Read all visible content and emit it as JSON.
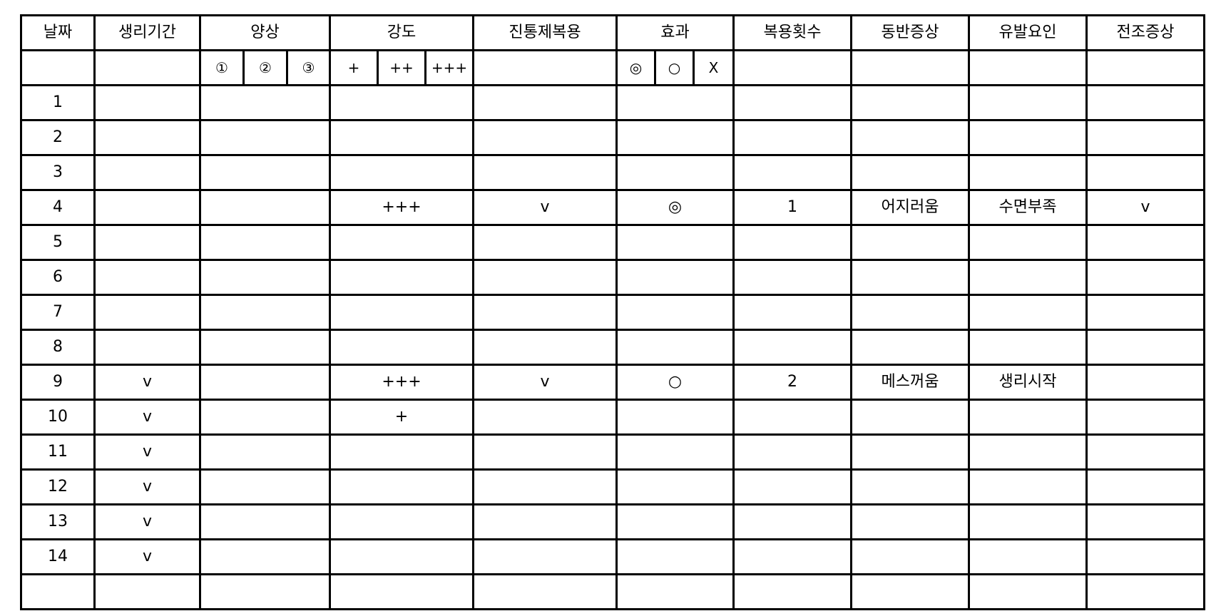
{
  "headers": [
    "날짜",
    "생리기간",
    "양상",
    "강도",
    "진통제복용",
    "효과",
    "복용횟수",
    "동반증상",
    "유발요인",
    "전조증상"
  ],
  "subheaders": {
    "pattern": [
      "①",
      "②",
      "③"
    ],
    "intensity": [
      "+",
      "++",
      "+++"
    ],
    "effect": [
      "◎",
      "○",
      "X"
    ]
  },
  "rows": [
    {
      "day": "1",
      "period": "",
      "pattern": "",
      "intensity": "",
      "painkiller": "",
      "effect": "",
      "doses": "",
      "symptoms": "",
      "triggers": "",
      "aura": ""
    },
    {
      "day": "2",
      "period": "",
      "pattern": "",
      "intensity": "",
      "painkiller": "",
      "effect": "",
      "doses": "",
      "symptoms": "",
      "triggers": "",
      "aura": ""
    },
    {
      "day": "3",
      "period": "",
      "pattern": "",
      "intensity": "",
      "painkiller": "",
      "effect": "",
      "doses": "",
      "symptoms": "",
      "triggers": "",
      "aura": ""
    },
    {
      "day": "4",
      "period": "",
      "pattern": "",
      "intensity": "+++",
      "painkiller": "v",
      "effect": "◎",
      "doses": "1",
      "symptoms": "어지러움",
      "triggers": "수면부족",
      "aura": "v"
    },
    {
      "day": "5",
      "period": "",
      "pattern": "",
      "intensity": "",
      "painkiller": "",
      "effect": "",
      "doses": "",
      "symptoms": "",
      "triggers": "",
      "aura": ""
    },
    {
      "day": "6",
      "period": "",
      "pattern": "",
      "intensity": "",
      "painkiller": "",
      "effect": "",
      "doses": "",
      "symptoms": "",
      "triggers": "",
      "aura": ""
    },
    {
      "day": "7",
      "period": "",
      "pattern": "",
      "intensity": "",
      "painkiller": "",
      "effect": "",
      "doses": "",
      "symptoms": "",
      "triggers": "",
      "aura": ""
    },
    {
      "day": "8",
      "period": "",
      "pattern": "",
      "intensity": "",
      "painkiller": "",
      "effect": "",
      "doses": "",
      "symptoms": "",
      "triggers": "",
      "aura": ""
    },
    {
      "day": "9",
      "period": "v",
      "pattern": "",
      "intensity": "+++",
      "painkiller": "v",
      "effect": "○",
      "doses": "2",
      "symptoms": "메스꺼움",
      "triggers": "생리시작",
      "aura": ""
    },
    {
      "day": "10",
      "period": "v",
      "pattern": "",
      "intensity": "+",
      "painkiller": "",
      "effect": "",
      "doses": "",
      "symptoms": "",
      "triggers": "",
      "aura": ""
    },
    {
      "day": "11",
      "period": "v",
      "pattern": "",
      "intensity": "",
      "painkiller": "",
      "effect": "",
      "doses": "",
      "symptoms": "",
      "triggers": "",
      "aura": ""
    },
    {
      "day": "12",
      "period": "v",
      "pattern": "",
      "intensity": "",
      "painkiller": "",
      "effect": "",
      "doses": "",
      "symptoms": "",
      "triggers": "",
      "aura": ""
    },
    {
      "day": "13",
      "period": "v",
      "pattern": "",
      "intensity": "",
      "painkiller": "",
      "effect": "",
      "doses": "",
      "symptoms": "",
      "triggers": "",
      "aura": ""
    },
    {
      "day": "14",
      "period": "v",
      "pattern": "",
      "intensity": "",
      "painkiller": "",
      "effect": "",
      "doses": "",
      "symptoms": "",
      "triggers": "",
      "aura": ""
    },
    {
      "day": "",
      "period": "",
      "pattern": "",
      "intensity": "",
      "painkiller": "",
      "effect": "",
      "doses": "",
      "symptoms": "",
      "triggers": "",
      "aura": ""
    }
  ]
}
